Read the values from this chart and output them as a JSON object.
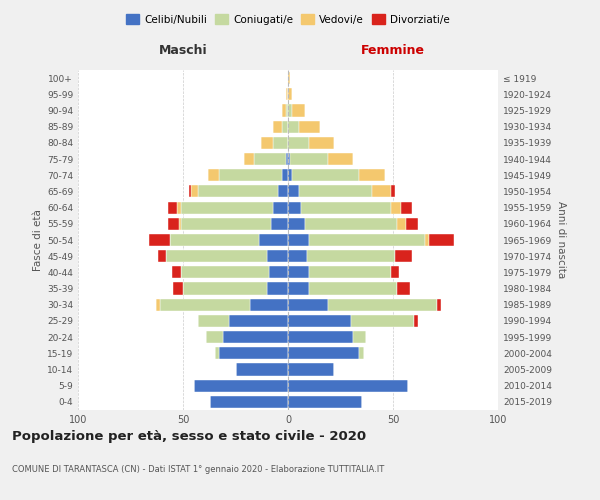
{
  "age_groups": [
    "0-4",
    "5-9",
    "10-14",
    "15-19",
    "20-24",
    "25-29",
    "30-34",
    "35-39",
    "40-44",
    "45-49",
    "50-54",
    "55-59",
    "60-64",
    "65-69",
    "70-74",
    "75-79",
    "80-84",
    "85-89",
    "90-94",
    "95-99",
    "100+"
  ],
  "birth_years": [
    "2015-2019",
    "2010-2014",
    "2005-2009",
    "2000-2004",
    "1995-1999",
    "1990-1994",
    "1985-1989",
    "1980-1984",
    "1975-1979",
    "1970-1974",
    "1965-1969",
    "1960-1964",
    "1955-1959",
    "1950-1954",
    "1945-1949",
    "1940-1944",
    "1935-1939",
    "1930-1934",
    "1925-1929",
    "1920-1924",
    "≤ 1919"
  ],
  "colors": {
    "celibi": "#4472C4",
    "coniugati": "#c5d9a0",
    "vedovi": "#f4c86e",
    "divorziati": "#d9231c"
  },
  "male": {
    "celibi": [
      37,
      45,
      25,
      33,
      31,
      28,
      18,
      10,
      9,
      10,
      14,
      8,
      7,
      5,
      3,
      1,
      0,
      0,
      0,
      0,
      0
    ],
    "coniugati": [
      0,
      0,
      0,
      2,
      8,
      15,
      43,
      40,
      42,
      48,
      42,
      43,
      44,
      38,
      30,
      15,
      7,
      3,
      1,
      0,
      0
    ],
    "vedovi": [
      0,
      0,
      0,
      0,
      0,
      0,
      2,
      0,
      0,
      0,
      0,
      1,
      2,
      3,
      5,
      5,
      6,
      4,
      2,
      1,
      0
    ],
    "divorziati": [
      0,
      0,
      0,
      0,
      0,
      0,
      0,
      5,
      4,
      4,
      10,
      5,
      4,
      1,
      0,
      0,
      0,
      0,
      0,
      0,
      0
    ]
  },
  "female": {
    "celibi": [
      35,
      57,
      22,
      34,
      31,
      30,
      19,
      10,
      10,
      9,
      10,
      8,
      6,
      5,
      2,
      1,
      0,
      0,
      0,
      0,
      0
    ],
    "coniugati": [
      0,
      0,
      0,
      2,
      6,
      30,
      52,
      42,
      39,
      42,
      55,
      44,
      43,
      35,
      32,
      18,
      10,
      5,
      2,
      0,
      0
    ],
    "vedovi": [
      0,
      0,
      0,
      0,
      0,
      0,
      0,
      0,
      0,
      0,
      2,
      4,
      5,
      9,
      12,
      12,
      12,
      10,
      6,
      2,
      1
    ],
    "divorziati": [
      0,
      0,
      0,
      0,
      0,
      2,
      2,
      6,
      4,
      8,
      12,
      6,
      5,
      2,
      0,
      0,
      0,
      0,
      0,
      0,
      0
    ]
  },
  "xlim": 100,
  "title": "Popolazione per età, sesso e stato civile - 2020",
  "subtitle": "COMUNE DI TARANTASCA (CN) - Dati ISTAT 1° gennaio 2020 - Elaborazione TUTTITALIA.IT",
  "ylabel_left": "Fasce di età",
  "ylabel_right": "Anni di nascita",
  "xlabel_left": "Maschi",
  "xlabel_right": "Femmine",
  "legend_labels": [
    "Celibi/Nubili",
    "Coniugati/e",
    "Vedovi/e",
    "Divorziati/e"
  ],
  "background_color": "#f0f0f0",
  "plot_bg_color": "#ffffff"
}
